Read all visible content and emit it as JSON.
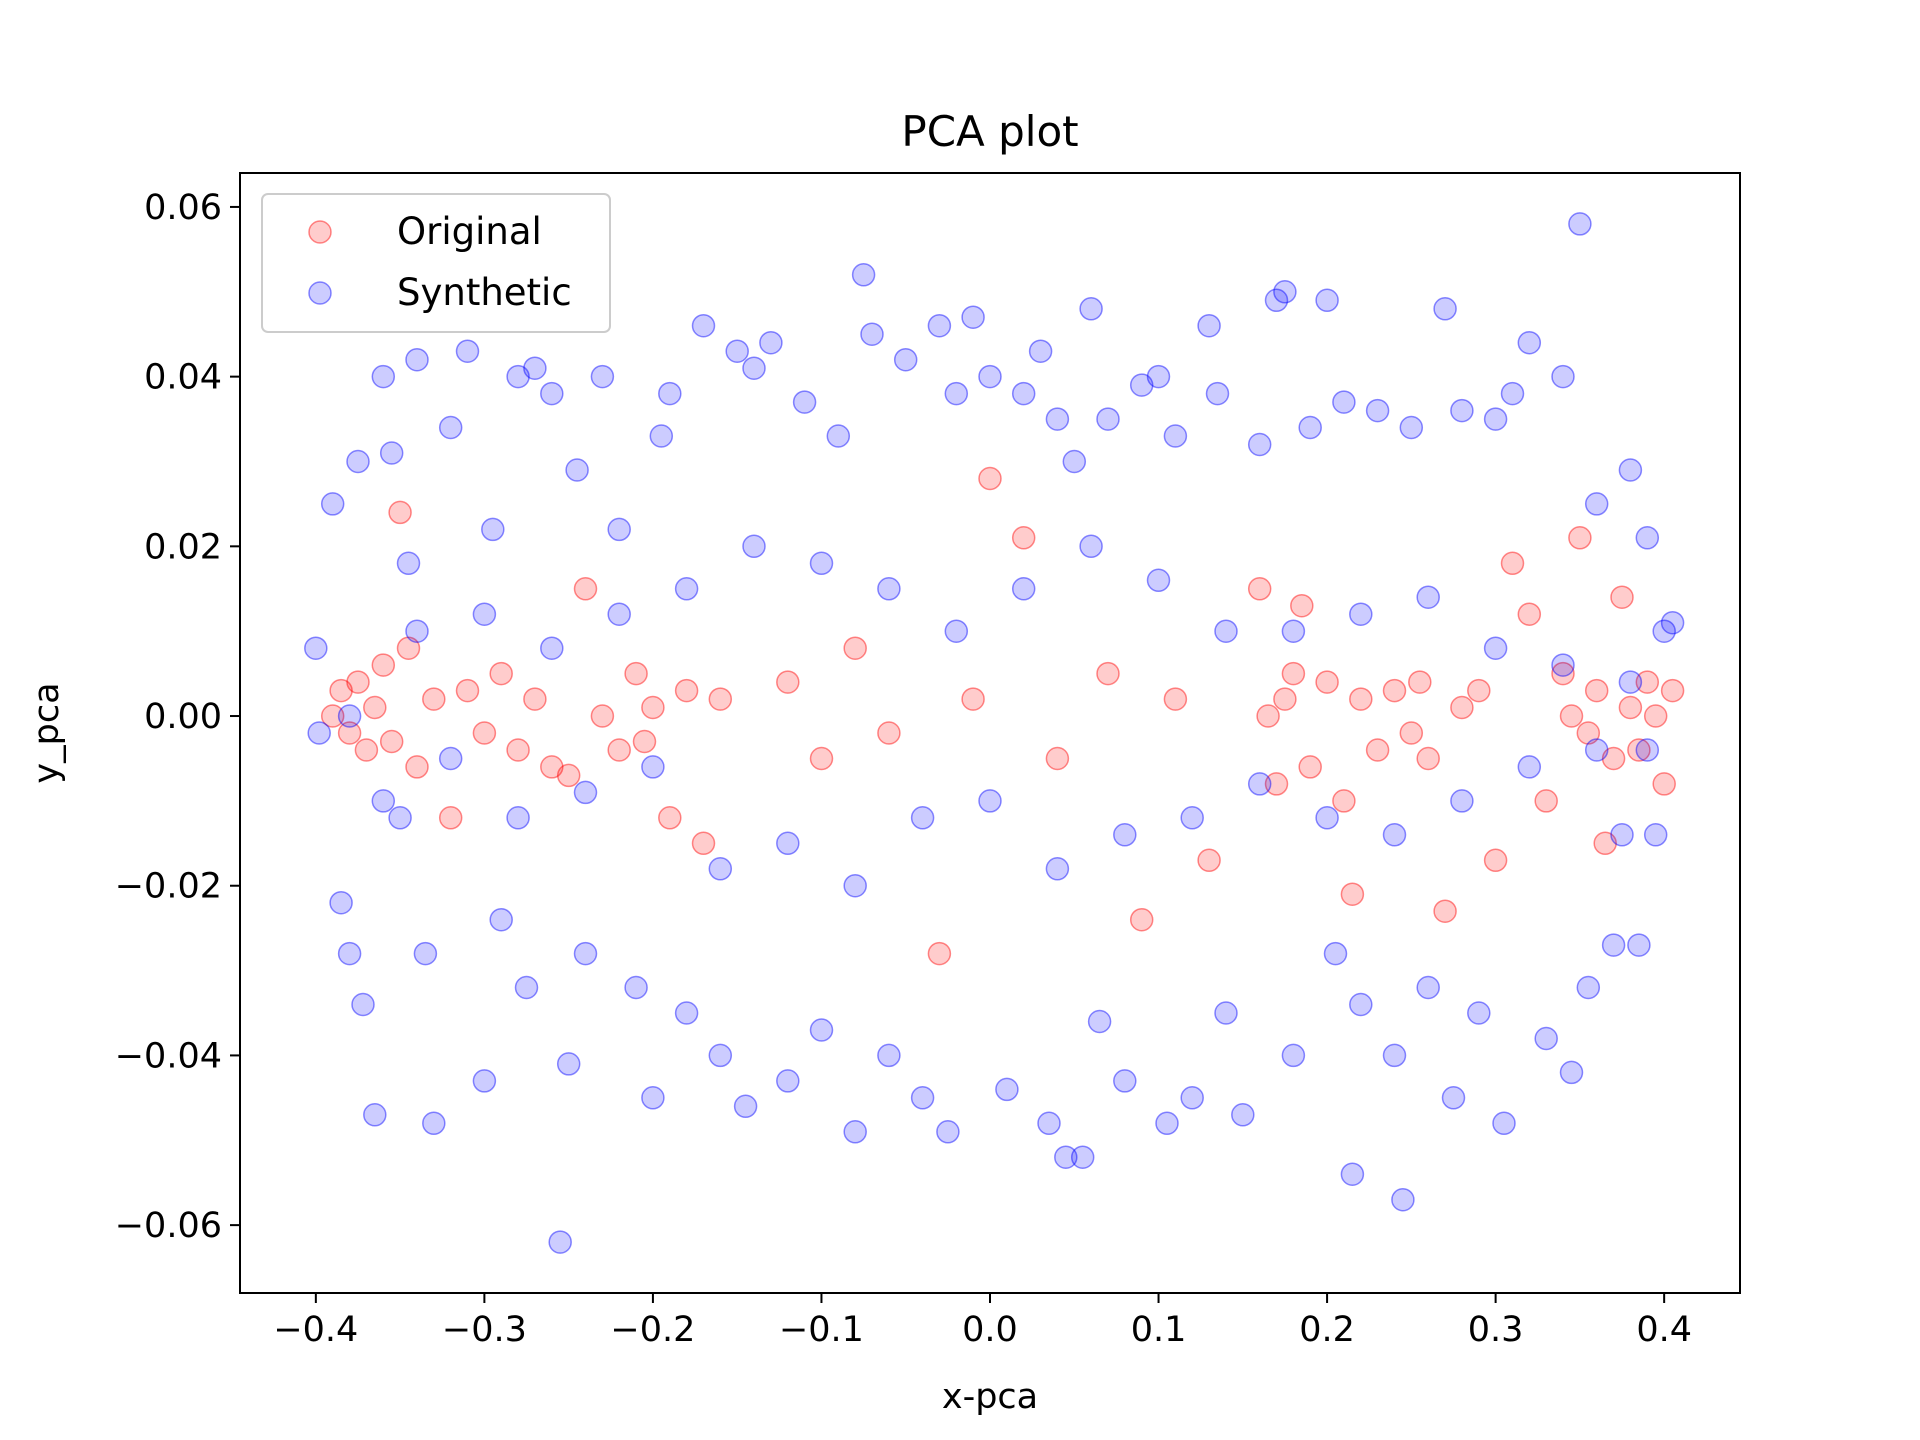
{
  "chart_data": {
    "type": "scatter",
    "title": "PCA plot",
    "xlabel": "x-pca",
    "ylabel": "y_pca",
    "xlim": [
      -0.445,
      0.445
    ],
    "ylim": [
      -0.068,
      0.064
    ],
    "xticks": [
      -0.4,
      -0.3,
      -0.2,
      -0.1,
      0.0,
      0.1,
      0.2,
      0.3,
      0.4
    ],
    "xtick_labels": [
      "−0.4",
      "−0.3",
      "−0.2",
      "−0.1",
      "0.0",
      "0.1",
      "0.2",
      "0.3",
      "0.4"
    ],
    "yticks": [
      0.06,
      0.04,
      0.02,
      0.0,
      -0.02,
      -0.04,
      -0.06
    ],
    "ytick_labels": [
      "0.06",
      "0.04",
      "0.02",
      "0.00",
      "−0.02",
      "−0.04",
      "−0.06"
    ],
    "grid": false,
    "legend_position": "top-left",
    "marker_alpha": 0.2,
    "series": [
      {
        "name": "Original",
        "color": "#ff0000",
        "points": [
          [
            -0.39,
            0.0
          ],
          [
            -0.385,
            0.003
          ],
          [
            -0.38,
            -0.002
          ],
          [
            -0.375,
            0.004
          ],
          [
            -0.37,
            -0.004
          ],
          [
            -0.365,
            0.001
          ],
          [
            -0.36,
            0.006
          ],
          [
            -0.355,
            -0.003
          ],
          [
            -0.35,
            0.024
          ],
          [
            -0.345,
            0.008
          ],
          [
            -0.34,
            -0.006
          ],
          [
            -0.33,
            0.002
          ],
          [
            -0.32,
            -0.012
          ],
          [
            -0.31,
            0.003
          ],
          [
            -0.3,
            -0.002
          ],
          [
            -0.29,
            0.005
          ],
          [
            -0.28,
            -0.004
          ],
          [
            -0.27,
            0.002
          ],
          [
            -0.26,
            -0.006
          ],
          [
            -0.25,
            -0.007
          ],
          [
            -0.24,
            0.015
          ],
          [
            -0.23,
            0.0
          ],
          [
            -0.22,
            -0.004
          ],
          [
            -0.21,
            0.005
          ],
          [
            -0.205,
            -0.003
          ],
          [
            -0.2,
            0.001
          ],
          [
            -0.19,
            -0.012
          ],
          [
            -0.18,
            0.003
          ],
          [
            -0.17,
            -0.015
          ],
          [
            -0.16,
            0.002
          ],
          [
            -0.12,
            0.004
          ],
          [
            -0.1,
            -0.005
          ],
          [
            -0.08,
            0.008
          ],
          [
            -0.06,
            -0.002
          ],
          [
            -0.03,
            -0.028
          ],
          [
            -0.01,
            0.002
          ],
          [
            0.0,
            0.028
          ],
          [
            0.02,
            0.021
          ],
          [
            0.04,
            -0.005
          ],
          [
            0.07,
            0.005
          ],
          [
            0.09,
            -0.024
          ],
          [
            0.11,
            0.002
          ],
          [
            0.13,
            -0.017
          ],
          [
            0.16,
            0.015
          ],
          [
            0.165,
            0.0
          ],
          [
            0.17,
            -0.008
          ],
          [
            0.175,
            0.002
          ],
          [
            0.18,
            0.005
          ],
          [
            0.185,
            0.013
          ],
          [
            0.19,
            -0.006
          ],
          [
            0.2,
            0.004
          ],
          [
            0.21,
            -0.01
          ],
          [
            0.215,
            -0.021
          ],
          [
            0.22,
            0.002
          ],
          [
            0.23,
            -0.004
          ],
          [
            0.24,
            0.003
          ],
          [
            0.25,
            -0.002
          ],
          [
            0.255,
            0.004
          ],
          [
            0.26,
            -0.005
          ],
          [
            0.27,
            -0.023
          ],
          [
            0.28,
            0.001
          ],
          [
            0.29,
            0.003
          ],
          [
            0.3,
            -0.017
          ],
          [
            0.31,
            0.018
          ],
          [
            0.32,
            0.012
          ],
          [
            0.33,
            -0.01
          ],
          [
            0.34,
            0.005
          ],
          [
            0.345,
            0.0
          ],
          [
            0.35,
            0.021
          ],
          [
            0.355,
            -0.002
          ],
          [
            0.36,
            0.003
          ],
          [
            0.365,
            -0.015
          ],
          [
            0.37,
            -0.005
          ],
          [
            0.375,
            0.014
          ],
          [
            0.38,
            0.001
          ],
          [
            0.385,
            -0.004
          ],
          [
            0.39,
            0.004
          ],
          [
            0.395,
            0.0
          ],
          [
            0.4,
            -0.008
          ],
          [
            0.405,
            0.003
          ]
        ]
      },
      {
        "name": "Synthetic",
        "color": "#0000ff",
        "points": [
          [
            -0.4,
            0.008
          ],
          [
            -0.398,
            -0.002
          ],
          [
            -0.39,
            0.025
          ],
          [
            -0.385,
            -0.022
          ],
          [
            -0.38,
            -0.028
          ],
          [
            -0.375,
            0.03
          ],
          [
            -0.372,
            -0.034
          ],
          [
            -0.365,
            -0.047
          ],
          [
            -0.36,
            0.04
          ],
          [
            -0.355,
            0.031
          ],
          [
            -0.35,
            -0.012
          ],
          [
            -0.345,
            0.018
          ],
          [
            -0.34,
            0.042
          ],
          [
            -0.335,
            -0.028
          ],
          [
            -0.33,
            -0.048
          ],
          [
            -0.32,
            0.034
          ],
          [
            -0.31,
            0.043
          ],
          [
            -0.3,
            -0.043
          ],
          [
            -0.295,
            0.022
          ],
          [
            -0.29,
            -0.024
          ],
          [
            -0.28,
            0.04
          ],
          [
            -0.275,
            -0.032
          ],
          [
            -0.27,
            0.041
          ],
          [
            -0.26,
            0.038
          ],
          [
            -0.255,
            -0.062
          ],
          [
            -0.25,
            -0.041
          ],
          [
            -0.245,
            0.029
          ],
          [
            -0.24,
            -0.028
          ],
          [
            -0.23,
            0.04
          ],
          [
            -0.22,
            0.022
          ],
          [
            -0.21,
            -0.032
          ],
          [
            -0.2,
            -0.045
          ],
          [
            -0.195,
            0.033
          ],
          [
            -0.19,
            0.038
          ],
          [
            -0.18,
            -0.035
          ],
          [
            -0.17,
            0.046
          ],
          [
            -0.16,
            -0.04
          ],
          [
            -0.15,
            0.043
          ],
          [
            -0.145,
            -0.046
          ],
          [
            -0.14,
            0.041
          ],
          [
            -0.13,
            0.044
          ],
          [
            -0.12,
            -0.043
          ],
          [
            -0.11,
            0.037
          ],
          [
            -0.1,
            -0.037
          ],
          [
            -0.09,
            0.033
          ],
          [
            -0.08,
            -0.049
          ],
          [
            -0.075,
            0.052
          ],
          [
            -0.07,
            0.045
          ],
          [
            -0.06,
            -0.04
          ],
          [
            -0.05,
            0.042
          ],
          [
            -0.04,
            -0.045
          ],
          [
            -0.03,
            0.046
          ],
          [
            -0.025,
            -0.049
          ],
          [
            -0.02,
            0.038
          ],
          [
            -0.01,
            0.047
          ],
          [
            0.0,
            0.04
          ],
          [
            0.01,
            -0.044
          ],
          [
            0.02,
            0.038
          ],
          [
            0.03,
            0.043
          ],
          [
            0.035,
            -0.048
          ],
          [
            0.04,
            0.035
          ],
          [
            0.045,
            -0.052
          ],
          [
            0.05,
            0.03
          ],
          [
            0.055,
            -0.052
          ],
          [
            0.06,
            0.048
          ],
          [
            0.065,
            -0.036
          ],
          [
            0.07,
            0.035
          ],
          [
            0.08,
            -0.043
          ],
          [
            0.09,
            0.039
          ],
          [
            0.1,
            0.04
          ],
          [
            0.105,
            -0.048
          ],
          [
            0.11,
            0.033
          ],
          [
            0.12,
            -0.045
          ],
          [
            0.13,
            0.046
          ],
          [
            0.135,
            0.038
          ],
          [
            0.14,
            -0.035
          ],
          [
            0.15,
            -0.047
          ],
          [
            0.16,
            0.032
          ],
          [
            0.17,
            0.049
          ],
          [
            0.175,
            0.05
          ],
          [
            0.18,
            -0.04
          ],
          [
            0.19,
            0.034
          ],
          [
            0.2,
            0.049
          ],
          [
            0.205,
            -0.028
          ],
          [
            0.21,
            0.037
          ],
          [
            0.215,
            -0.054
          ],
          [
            0.22,
            -0.034
          ],
          [
            0.23,
            0.036
          ],
          [
            0.24,
            -0.04
          ],
          [
            0.245,
            -0.057
          ],
          [
            0.25,
            0.034
          ],
          [
            0.26,
            -0.032
          ],
          [
            0.27,
            0.048
          ],
          [
            0.275,
            -0.045
          ],
          [
            0.28,
            0.036
          ],
          [
            0.29,
            -0.035
          ],
          [
            0.3,
            0.035
          ],
          [
            0.305,
            -0.048
          ],
          [
            0.31,
            0.038
          ],
          [
            0.32,
            0.044
          ],
          [
            0.33,
            -0.038
          ],
          [
            0.34,
            0.04
          ],
          [
            0.345,
            -0.042
          ],
          [
            0.35,
            0.058
          ],
          [
            0.355,
            -0.032
          ],
          [
            0.36,
            0.025
          ],
          [
            0.37,
            -0.027
          ],
          [
            0.375,
            -0.014
          ],
          [
            0.38,
            0.029
          ],
          [
            0.385,
            -0.027
          ],
          [
            0.39,
            0.021
          ],
          [
            0.395,
            -0.014
          ],
          [
            0.4,
            0.01
          ],
          [
            0.405,
            0.011
          ],
          [
            -0.38,
            0.0
          ],
          [
            -0.36,
            -0.01
          ],
          [
            -0.34,
            0.01
          ],
          [
            -0.32,
            -0.005
          ],
          [
            -0.3,
            0.012
          ],
          [
            -0.28,
            -0.012
          ],
          [
            -0.26,
            0.008
          ],
          [
            -0.24,
            -0.009
          ],
          [
            -0.22,
            0.012
          ],
          [
            -0.2,
            -0.006
          ],
          [
            -0.18,
            0.015
          ],
          [
            -0.16,
            -0.018
          ],
          [
            -0.14,
            0.02
          ],
          [
            -0.12,
            -0.015
          ],
          [
            -0.1,
            0.018
          ],
          [
            -0.08,
            -0.02
          ],
          [
            -0.06,
            0.015
          ],
          [
            -0.04,
            -0.012
          ],
          [
            -0.02,
            0.01
          ],
          [
            0.0,
            -0.01
          ],
          [
            0.02,
            0.015
          ],
          [
            0.04,
            -0.018
          ],
          [
            0.06,
            0.02
          ],
          [
            0.08,
            -0.014
          ],
          [
            0.1,
            0.016
          ],
          [
            0.12,
            -0.012
          ],
          [
            0.14,
            0.01
          ],
          [
            0.16,
            -0.008
          ],
          [
            0.18,
            0.01
          ],
          [
            0.2,
            -0.012
          ],
          [
            0.22,
            0.012
          ],
          [
            0.24,
            -0.014
          ],
          [
            0.26,
            0.014
          ],
          [
            0.28,
            -0.01
          ],
          [
            0.3,
            0.008
          ],
          [
            0.32,
            -0.006
          ],
          [
            0.34,
            0.006
          ],
          [
            0.36,
            -0.004
          ],
          [
            0.38,
            0.004
          ],
          [
            0.39,
            -0.004
          ]
        ]
      }
    ]
  }
}
